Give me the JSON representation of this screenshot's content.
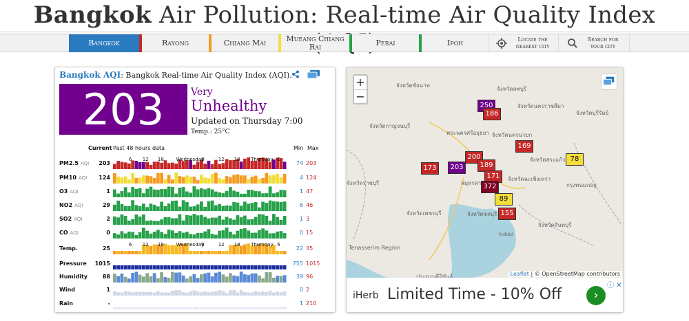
{
  "header": {
    "title_bold": "Bangkok",
    "title_rest": "Air Pollution: Real-time Air Quality Index (AQI)"
  },
  "nav": {
    "items": [
      {
        "label": "Bangkok"
      },
      {
        "label": "Rayong"
      },
      {
        "label": "Chiang Mai"
      },
      {
        "label": "Mueang Chiang Rai"
      },
      {
        "label": "Perai"
      },
      {
        "label": "Ipoh"
      },
      {
        "label": "Locate the nearest city"
      },
      {
        "label": "Search for your city"
      }
    ],
    "colors": [
      "#2a7ac0",
      "#c62828",
      "#f59c21",
      "#f2dd3a",
      "#27a14a",
      "#27a14a"
    ]
  },
  "aqi_card": {
    "city_label": "Bangkok AQI",
    "subtitle": ": Bangkok Real-time Air Quality Index (AQI).",
    "aqi": "203",
    "level_line1": "Very",
    "level_line2": "Unhealthy",
    "updated": "Updated on Thursday 7:00",
    "temp": "Temp.: 25°C",
    "col_current": "Current",
    "col_past": "Past 48 hours data",
    "col_min": "Min",
    "col_max": "Max",
    "time_axis": [
      "6",
      "12",
      "18",
      "Wednesday",
      "6",
      "12",
      "18",
      "Thursday",
      "6"
    ],
    "rows": [
      {
        "label": "PM2.5",
        "unit": "AQI",
        "current": "203",
        "min": "74",
        "max": "203"
      },
      {
        "label": "PM10",
        "unit": "AQI",
        "current": "124",
        "min": "4",
        "max": "124"
      },
      {
        "label": "O3",
        "unit": "AQI",
        "current": "1",
        "min": "1",
        "max": "47"
      },
      {
        "label": "NO2",
        "unit": "AQI",
        "current": "29",
        "min": "6",
        "max": "46"
      },
      {
        "label": "SO2",
        "unit": "AQI",
        "current": "2",
        "min": "1",
        "max": "3"
      },
      {
        "label": "CO",
        "unit": "AQI",
        "current": "0",
        "min": "0",
        "max": "15"
      },
      {
        "label": "Temp.",
        "unit": "",
        "current": "25",
        "min": "22",
        "max": "35"
      },
      {
        "label": "Pressure",
        "unit": "",
        "current": "1015",
        "min": "755",
        "max": "1015"
      },
      {
        "label": "Humidity",
        "unit": "",
        "current": "88",
        "min": "39",
        "max": "96"
      },
      {
        "label": "Wind",
        "unit": "",
        "current": "1",
        "min": "0",
        "max": "2"
      },
      {
        "label": "Rain",
        "unit": "",
        "current": "-",
        "min": "1",
        "max": "210"
      }
    ]
  },
  "map": {
    "places": [
      "จังหวัดชัยนาท",
      "จังหวัดลพบุรี",
      "จังหวัดนครราชสีมา",
      "จังหวัดบุรีรัมย์",
      "จังหวัดกาญจนบุรี",
      "พระนครศรีอยุธยา",
      "จังหวัดนครนายก",
      "จังหวัดสระแก้ว",
      "จังหวัดราชบุรี",
      "สมุทรสาคร",
      "จังหวัดฉะเชิงเทรา",
      "กรุงพนมเปญ",
      "จังหวัดเพชรบุรี",
      "จังหวัดชลบุรี",
      "จังหวัดจันทบุรี",
      "ระยอง",
      "Tenasserim Region",
      "ประจวบคีรีขันธ์"
    ],
    "markers": [
      {
        "value": "250",
        "color": "#71008f"
      },
      {
        "value": "186",
        "color": "#c62828"
      },
      {
        "value": "169",
        "color": "#c62828"
      },
      {
        "value": "78",
        "color": "#f2dd3a"
      },
      {
        "value": "173",
        "color": "#c62828"
      },
      {
        "value": "200",
        "color": "#c62828"
      },
      {
        "value": "203",
        "color": "#71008f"
      },
      {
        "value": "189",
        "color": "#c62828"
      },
      {
        "value": "171",
        "color": "#c62828"
      },
      {
        "value": "372",
        "color": "#7e0023"
      },
      {
        "value": "89",
        "color": "#f2dd3a"
      },
      {
        "value": "155",
        "color": "#c62828"
      }
    ],
    "zoom_in": "+",
    "zoom_out": "−",
    "attribution_leaflet": "Leaflet",
    "attribution_rest": "| © OpenStreetMap contributors"
  },
  "ad": {
    "brand": "iHerb",
    "text": "Limited Time - 10% Off",
    "go": "›"
  }
}
